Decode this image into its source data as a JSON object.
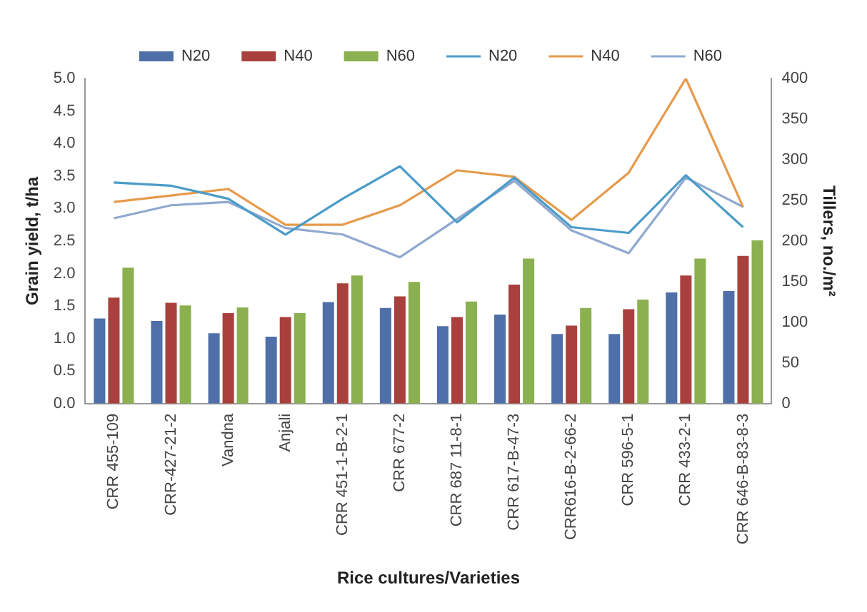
{
  "chart_data": {
    "type": "bar",
    "xlabel": "Rice cultures/Varieties",
    "ylabel": "Grain yield, t/ha",
    "y2label": "Tillers, no./m²",
    "categories": [
      "CRR 455-109",
      "CRR-427-21-2",
      "Vandna",
      "Anjali",
      "CRR 451-1-B-2-1",
      "CRR 677-2",
      "CRR 687 11-8-1",
      "CRR 617-B-47-3",
      "CRR616-B-2-66-2",
      "CRR 596-5-1",
      "CRR 433-2-1",
      "CRR 646-B-83-8-3"
    ],
    "series": [
      {
        "name": "N20",
        "color": "#4f6fa8",
        "values": [
          1.31,
          1.27,
          1.08,
          1.03,
          1.56,
          1.47,
          1.19,
          1.37,
          1.07,
          1.07,
          1.71,
          1.73
        ]
      },
      {
        "name": "N40",
        "color": "#a9403d",
        "values": [
          1.63,
          1.55,
          1.39,
          1.33,
          1.85,
          1.65,
          1.33,
          1.83,
          1.2,
          1.45,
          1.97,
          2.27
        ]
      },
      {
        "name": "N60",
        "color": "#8bb04f",
        "values": [
          2.09,
          1.51,
          1.48,
          1.39,
          1.97,
          1.87,
          1.57,
          2.23,
          1.47,
          1.6,
          2.23,
          2.51
        ]
      },
      {
        "name": "N20",
        "type": "line",
        "axis": "y2",
        "color": "#4a9cc8",
        "values": [
          272,
          268,
          252,
          208,
          252,
          292,
          223,
          278,
          217,
          210,
          281,
          217
        ]
      },
      {
        "name": "N40",
        "type": "line",
        "axis": "y2",
        "color": "#e69a4c",
        "values": [
          248,
          256,
          264,
          220,
          220,
          244,
          287,
          279,
          226,
          284,
          400,
          242
        ]
      },
      {
        "name": "N60",
        "type": "line",
        "axis": "y2",
        "color": "#8fa9cf",
        "values": [
          228,
          244,
          248,
          216,
          208,
          180,
          227,
          274,
          213,
          185,
          278,
          242
        ]
      }
    ],
    "ylim": [
      0,
      5
    ],
    "yticks": [
      {
        "value": 0,
        "label": "0.0"
      },
      {
        "value": 0.5,
        "label": "0.5"
      },
      {
        "value": 1,
        "label": "1.0"
      },
      {
        "value": 1.5,
        "label": "1.5"
      },
      {
        "value": 2,
        "label": "2.0"
      },
      {
        "value": 2.5,
        "label": "2.5"
      },
      {
        "value": 3,
        "label": "3.0"
      },
      {
        "value": 3.5,
        "label": "3.5"
      },
      {
        "value": 4,
        "label": "4.0"
      },
      {
        "value": 4.5,
        "label": "4.5"
      },
      {
        "value": 5,
        "label": "5.0"
      }
    ],
    "y2lim": [
      0,
      400
    ],
    "y2ticks": [
      0,
      50,
      100,
      150,
      200,
      250,
      300,
      350,
      400
    ],
    "grid": false,
    "legend": "top",
    "marker": "none",
    "line_style": "solid"
  }
}
